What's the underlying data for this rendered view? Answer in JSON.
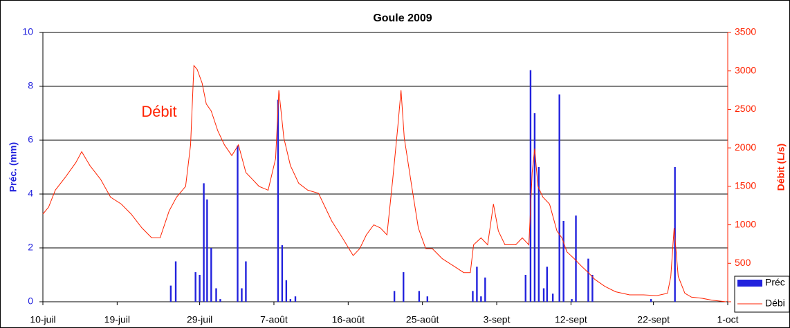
{
  "chart_data": {
    "type": "combo",
    "title": "Goule 2009",
    "annotation": "Débit",
    "ylabel": "Préc. (mm)",
    "y2label": "Débit (L/s)",
    "xlim": [
      0,
      83
    ],
    "xticks": [
      {
        "value": 0,
        "label": "10-juil"
      },
      {
        "value": 9,
        "label": "19-juil"
      },
      {
        "value": 19,
        "label": "29-juil"
      },
      {
        "value": 28,
        "label": "7-août"
      },
      {
        "value": 37,
        "label": "16-août"
      },
      {
        "value": 46,
        "label": "25-août"
      },
      {
        "value": 55,
        "label": "3-sept"
      },
      {
        "value": 64,
        "label": "12-sept"
      },
      {
        "value": 74,
        "label": "22-sept"
      },
      {
        "value": 83,
        "label": "1-oct"
      }
    ],
    "ylim": [
      0,
      10
    ],
    "yticks": [
      0,
      2,
      4,
      6,
      8,
      10
    ],
    "y2lim": [
      0,
      3500
    ],
    "y2ticks": [
      0,
      500,
      1000,
      1500,
      2000,
      2500,
      3000,
      3500
    ],
    "grid": true,
    "legend": "bottom-right",
    "series": [
      {
        "name": "Préc",
        "type": "bar",
        "color": "#2222dd",
        "x": [
          15.5,
          16.1,
          18.5,
          19.0,
          19.5,
          19.9,
          20.4,
          21.0,
          21.5,
          23.6,
          24.1,
          24.6,
          28.5,
          29.0,
          29.5,
          30.0,
          30.6,
          42.6,
          43.7,
          45.6,
          46.6,
          52.1,
          52.6,
          53.1,
          53.6,
          58.5,
          59.1,
          59.6,
          60.1,
          60.7,
          61.1,
          61.8,
          62.6,
          63.1,
          64.1,
          64.6,
          66.1,
          66.6,
          73.7,
          76.6
        ],
        "values": [
          0.6,
          1.5,
          1.1,
          1.0,
          4.4,
          3.8,
          2.0,
          0.5,
          0.1,
          5.8,
          0.5,
          1.5,
          7.5,
          2.1,
          0.8,
          0.1,
          0.2,
          0.4,
          1.1,
          0.4,
          0.2,
          0.4,
          1.3,
          0.2,
          0.9,
          1.0,
          8.6,
          7.0,
          5.0,
          0.5,
          1.3,
          0.3,
          7.7,
          3.0,
          0.1,
          3.2,
          1.6,
          1.0,
          0.1,
          5.0
        ]
      },
      {
        "name": "Débi",
        "type": "line",
        "color": "#ff2200",
        "axis": "y2",
        "x": [
          0,
          0.7,
          1.5,
          2.8,
          4.0,
          4.7,
          5.7,
          7.0,
          8.2,
          9.5,
          10.7,
          12.0,
          13.2,
          14.2,
          15.3,
          16.2,
          17.3,
          17.9,
          18.3,
          18.7,
          19.3,
          19.8,
          20.4,
          21.2,
          22.0,
          22.9,
          23.7,
          24.6,
          25.4,
          26.2,
          27.3,
          28.2,
          28.6,
          29.2,
          30.0,
          31.0,
          32.1,
          33.4,
          34.2,
          35.0,
          36.3,
          37.6,
          38.4,
          39.2,
          40.1,
          40.9,
          41.7,
          42.4,
          43.0,
          43.4,
          43.8,
          44.7,
          45.5,
          46.4,
          47.2,
          48.4,
          49.7,
          51.0,
          51.8,
          52.2,
          53.1,
          53.9,
          54.6,
          55.2,
          56.0,
          57.3,
          58.1,
          58.9,
          59.3,
          59.6,
          60.0,
          60.6,
          61.4,
          62.3,
          62.9,
          63.5,
          64.4,
          65.2,
          66.1,
          66.9,
          68.1,
          69.4,
          71.1,
          72.8,
          74.4,
          75.7,
          76.1,
          76.5,
          77.0,
          77.8,
          78.6,
          79.9,
          81.1,
          82.8
        ],
        "values": [
          1140,
          1230,
          1450,
          1630,
          1810,
          1950,
          1770,
          1590,
          1360,
          1270,
          1140,
          960,
          830,
          830,
          1180,
          1360,
          1500,
          2040,
          3070,
          3020,
          2840,
          2570,
          2480,
          2220,
          2040,
          1900,
          2040,
          1680,
          1590,
          1500,
          1450,
          1860,
          2750,
          2130,
          1770,
          1540,
          1450,
          1410,
          1230,
          1050,
          830,
          600,
          690,
          870,
          1000,
          960,
          870,
          1590,
          2260,
          2750,
          2130,
          1500,
          960,
          690,
          690,
          560,
          470,
          380,
          380,
          740,
          830,
          740,
          1270,
          920,
          740,
          740,
          830,
          740,
          1680,
          1990,
          1500,
          1360,
          1270,
          920,
          830,
          650,
          560,
          470,
          380,
          290,
          200,
          130,
          90,
          90,
          80,
          110,
          330,
          960,
          330,
          110,
          60,
          45,
          20,
          0
        ]
      }
    ]
  }
}
